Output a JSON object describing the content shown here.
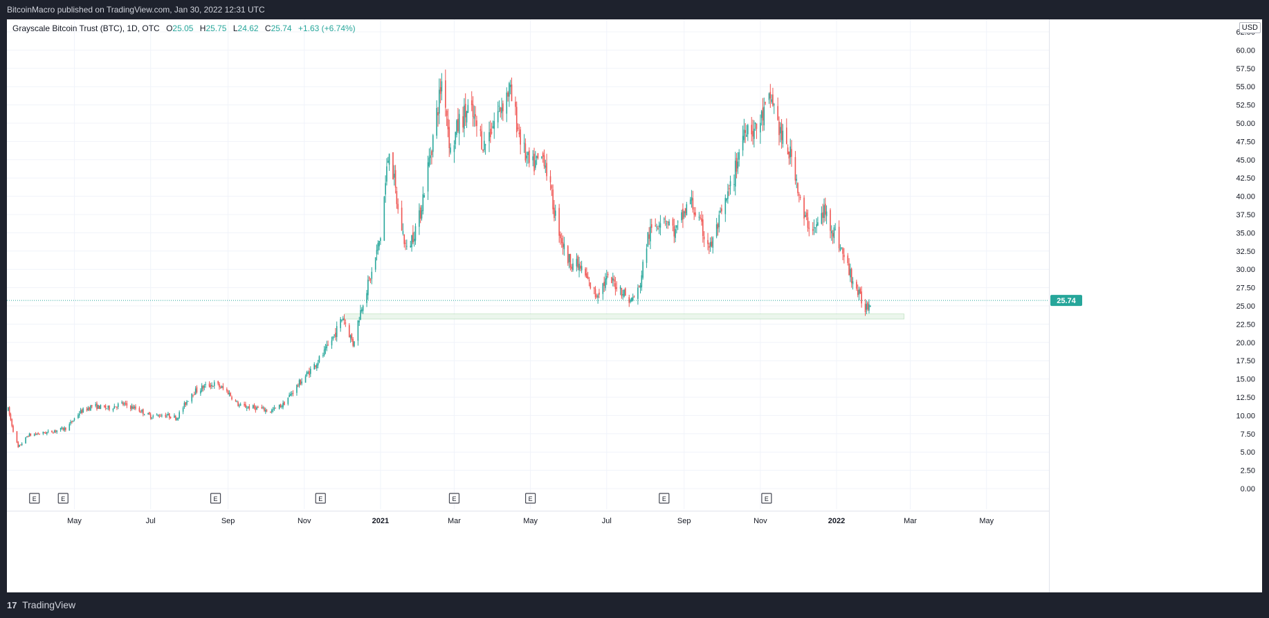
{
  "header": {
    "published": "BitcoinMacro published on TradingView.com, Jan 30, 2022 12:31 UTC"
  },
  "legend": {
    "symbol": "Grayscale Bitcoin Trust (BTC), 1D, OTC",
    "o_label": "O",
    "o_value": "25.05",
    "h_label": "H",
    "h_value": "25.75",
    "l_label": "L",
    "l_value": "24.62",
    "c_label": "C",
    "c_value": "25.74",
    "change": "+1.63 (+6.74%)"
  },
  "currency_label": "USD",
  "footer": {
    "logo_glyph": "17",
    "brand": "TradingView"
  },
  "colors": {
    "up": "#26a69a",
    "down": "#ef5350",
    "grid": "#f0f3fa",
    "support_zone": "#e8f5e9"
  },
  "chart_data": {
    "type": "candlestick",
    "title": "Grayscale Bitcoin Trust (BTC), 1D, OTC",
    "ylim": [
      0,
      62.5
    ],
    "y_ticks": [
      "62.50",
      "60.00",
      "57.50",
      "55.00",
      "52.50",
      "50.00",
      "47.50",
      "45.00",
      "42.50",
      "40.00",
      "37.50",
      "35.00",
      "32.50",
      "30.00",
      "27.50",
      "25.00",
      "22.50",
      "20.00",
      "17.50",
      "15.00",
      "12.50",
      "10.00",
      "7.50",
      "5.00",
      "2.50",
      "0.00"
    ],
    "x_ticks": [
      {
        "label": "May",
        "date": "2020-05-01",
        "bold": false
      },
      {
        "label": "Jul",
        "date": "2020-07-01",
        "bold": false
      },
      {
        "label": "Sep",
        "date": "2020-09-01",
        "bold": false
      },
      {
        "label": "Nov",
        "date": "2020-11-01",
        "bold": false
      },
      {
        "label": "2021",
        "date": "2021-01-01",
        "bold": true
      },
      {
        "label": "Mar",
        "date": "2021-03-01",
        "bold": false
      },
      {
        "label": "May",
        "date": "2021-05-01",
        "bold": false
      },
      {
        "label": "Jul",
        "date": "2021-07-01",
        "bold": false
      },
      {
        "label": "Sep",
        "date": "2021-09-01",
        "bold": false
      },
      {
        "label": "Nov",
        "date": "2021-11-01",
        "bold": false
      },
      {
        "label": "2022",
        "date": "2022-01-01",
        "bold": true
      },
      {
        "label": "Mar",
        "date": "2022-03-01",
        "bold": false
      },
      {
        "label": "May",
        "date": "2022-05-01",
        "bold": false
      }
    ],
    "x_range": [
      "2020-03-08",
      "2022-06-20"
    ],
    "price_path": [
      [
        "2020-03-09",
        10.8
      ],
      [
        "2020-03-13",
        8.0
      ],
      [
        "2020-03-17",
        5.6
      ],
      [
        "2020-03-25",
        7.3
      ],
      [
        "2020-04-10",
        7.7
      ],
      [
        "2020-04-25",
        8.3
      ],
      [
        "2020-05-05",
        10.4
      ],
      [
        "2020-05-15",
        11.3
      ],
      [
        "2020-05-28",
        11.0
      ],
      [
        "2020-06-08",
        11.6
      ],
      [
        "2020-06-20",
        10.9
      ],
      [
        "2020-07-01",
        9.9
      ],
      [
        "2020-07-12",
        10.1
      ],
      [
        "2020-07-22",
        9.7
      ],
      [
        "2020-08-03",
        13.1
      ],
      [
        "2020-08-15",
        14.1
      ],
      [
        "2020-08-22",
        14.3
      ],
      [
        "2020-09-01",
        13.2
      ],
      [
        "2020-09-10",
        11.3
      ],
      [
        "2020-09-25",
        11.0
      ],
      [
        "2020-10-05",
        10.6
      ],
      [
        "2020-10-15",
        11.5
      ],
      [
        "2020-10-25",
        13.8
      ],
      [
        "2020-11-05",
        16.0
      ],
      [
        "2020-11-18",
        18.8
      ],
      [
        "2020-11-25",
        21.0
      ],
      [
        "2020-12-02",
        23.6
      ],
      [
        "2020-12-10",
        19.8
      ],
      [
        "2020-12-18",
        25.8
      ],
      [
        "2020-12-25",
        29.4
      ],
      [
        "2021-01-01",
        34.5
      ],
      [
        "2021-01-08",
        47.0
      ],
      [
        "2021-01-15",
        38.0
      ],
      [
        "2021-01-22",
        32.5
      ],
      [
        "2021-02-01",
        37.0
      ],
      [
        "2021-02-12",
        48.0
      ],
      [
        "2021-02-20",
        56.8
      ],
      [
        "2021-02-26",
        46.0
      ],
      [
        "2021-03-05",
        50.2
      ],
      [
        "2021-03-13",
        52.0
      ],
      [
        "2021-03-25",
        47.0
      ],
      [
        "2021-04-05",
        51.5
      ],
      [
        "2021-04-14",
        54.6
      ],
      [
        "2021-04-25",
        46.5
      ],
      [
        "2021-05-01",
        43.8
      ],
      [
        "2021-05-12",
        45.5
      ],
      [
        "2021-05-20",
        38.0
      ],
      [
        "2021-05-30",
        31.5
      ],
      [
        "2021-06-10",
        30.2
      ],
      [
        "2021-06-22",
        26.5
      ],
      [
        "2021-07-01",
        28.6
      ],
      [
        "2021-07-10",
        27.8
      ],
      [
        "2021-07-20",
        25.6
      ],
      [
        "2021-07-27",
        27.3
      ],
      [
        "2021-08-03",
        34.5
      ],
      [
        "2021-08-15",
        37.6
      ],
      [
        "2021-08-25",
        35.0
      ],
      [
        "2021-09-06",
        39.5
      ],
      [
        "2021-09-15",
        35.5
      ],
      [
        "2021-09-22",
        33.0
      ],
      [
        "2021-10-01",
        37.5
      ],
      [
        "2021-10-10",
        42.0
      ],
      [
        "2021-10-20",
        50.0
      ],
      [
        "2021-10-28",
        49.0
      ],
      [
        "2021-11-06",
        52.0
      ],
      [
        "2021-11-10",
        53.5
      ],
      [
        "2021-11-18",
        48.0
      ],
      [
        "2021-11-28",
        44.5
      ],
      [
        "2021-12-05",
        37.0
      ],
      [
        "2021-12-15",
        35.5
      ],
      [
        "2021-12-22",
        38.0
      ],
      [
        "2022-01-01",
        34.5
      ],
      [
        "2022-01-10",
        30.2
      ],
      [
        "2022-01-20",
        26.0
      ],
      [
        "2022-01-24",
        24.8
      ],
      [
        "2022-01-29",
        25.74
      ]
    ],
    "last_price": 25.74,
    "last_price_label": "25.74",
    "support_zone": {
      "low": 23.2,
      "high": 23.9,
      "from": "2020-12-03",
      "to": "2022-02-24"
    },
    "earnings_markers": [
      "2020-03-30",
      "2020-04-22",
      "2020-08-22",
      "2020-11-14",
      "2021-03-01",
      "2021-05-01",
      "2021-08-16",
      "2021-11-06"
    ],
    "earnings_label": "E",
    "grid": true
  }
}
